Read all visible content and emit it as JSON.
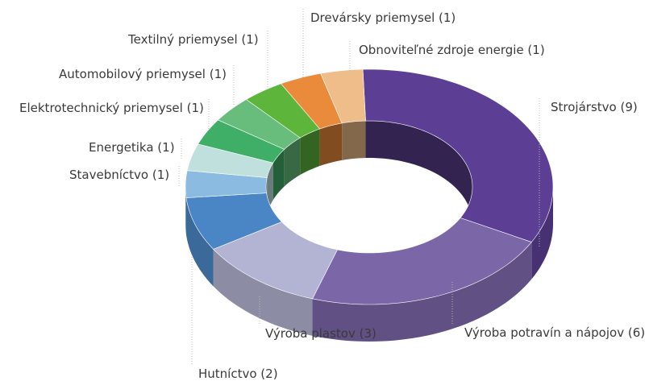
{
  "chart_data": {
    "type": "pie",
    "style": "3d-donut",
    "legend": "none",
    "categories": [
      "Strojárstvo",
      "Výroba potravín a nápojov",
      "Výroba plastov",
      "Hutníctvo",
      "Stavebníctvo",
      "Energetika",
      "Elektrotechnický priemysel",
      "Automobilový priemysel",
      "Textilný priemysel",
      "Drevársky priemysel",
      "Obnoviteľné zdroje energie"
    ],
    "values": [
      9,
      6,
      3,
      2,
      1,
      1,
      1,
      1,
      1,
      1,
      1
    ],
    "labels": [
      "Strojárstvo (9)",
      "Výroba potravín a nápojov (6)",
      "Výroba plastov (3)",
      "Hutníctvo (2)",
      "Stavebníctvo (1)",
      "Energetika (1)",
      "Elektrotechnický priemysel (1)",
      "Automobilový priemysel (1)",
      "Textilný priemysel (1)",
      "Drevársky priemysel (1)",
      "Obnoviteľné zdroje energie (1)"
    ],
    "colors": [
      "#5c3f94",
      "#7b66a8",
      "#b3b3d4",
      "#4a86c5",
      "#8bbbe0",
      "#bfe0dd",
      "#3fae67",
      "#68bd7c",
      "#5db53c",
      "#e98b3a",
      "#eebd8a"
    ]
  }
}
